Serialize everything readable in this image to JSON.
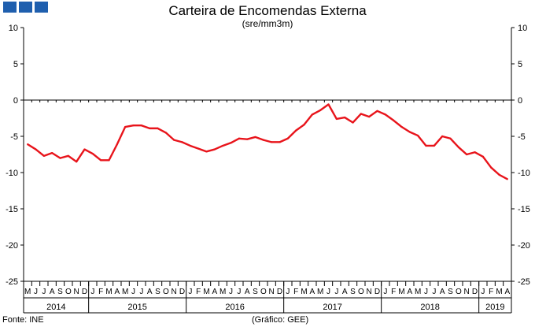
{
  "header": {
    "title": "Carteira de Encomendas Externa",
    "subtitle": "(sre/mm3m)"
  },
  "footer": {
    "source": "Fonte: INE",
    "credit": "(Gráfico: GEE)"
  },
  "brand": {
    "logo_color": "#1f5fae",
    "line_color": "#e8141b"
  },
  "chart_data": {
    "type": "line",
    "title": "Carteira de Encomendas Externa",
    "subtitle": "(sre/mm3m)",
    "ylim": [
      -25,
      10
    ],
    "yticks": [
      10,
      5,
      0,
      -5,
      -10,
      -15,
      -20,
      -25
    ],
    "y_axis_right": true,
    "grid": false,
    "month_labels": [
      "M",
      "J",
      "J",
      "A",
      "S",
      "O",
      "N",
      "D",
      "J",
      "F",
      "M",
      "A",
      "M",
      "J",
      "J",
      "A",
      "S",
      "O",
      "N",
      "D",
      "J",
      "F",
      "M",
      "A",
      "M",
      "J",
      "J",
      "A",
      "S",
      "O",
      "N",
      "D",
      "J",
      "F",
      "M",
      "A",
      "M",
      "J",
      "J",
      "A",
      "S",
      "O",
      "N",
      "D",
      "J",
      "F",
      "M",
      "A",
      "M",
      "J",
      "J",
      "A",
      "S",
      "O",
      "N",
      "D",
      "J",
      "F",
      "M",
      "A"
    ],
    "years": [
      {
        "label": "2014",
        "start": 0,
        "end": 8
      },
      {
        "label": "2015",
        "start": 8,
        "end": 20
      },
      {
        "label": "2016",
        "start": 20,
        "end": 32
      },
      {
        "label": "2017",
        "start": 32,
        "end": 44
      },
      {
        "label": "2018",
        "start": 44,
        "end": 56
      },
      {
        "label": "2019",
        "start": 56,
        "end": 60
      }
    ],
    "series": [
      {
        "color": "#e8141b",
        "values": [
          -6.1,
          -6.8,
          -7.7,
          -7.3,
          -8.0,
          -7.7,
          -8.5,
          -6.8,
          -7.4,
          -8.3,
          -8.3,
          -6.1,
          -3.7,
          -3.5,
          -3.5,
          -3.9,
          -3.9,
          -4.5,
          -5.5,
          -5.8,
          -6.3,
          -6.7,
          -7.1,
          -6.8,
          -6.3,
          -5.9,
          -5.3,
          -5.4,
          -5.1,
          -5.5,
          -5.8,
          -5.8,
          -5.3,
          -4.2,
          -3.4,
          -2.0,
          -1.4,
          -0.6,
          -2.6,
          -2.4,
          -3.1,
          -1.9,
          -2.3,
          -1.5,
          -2.0,
          -2.8,
          -3.7,
          -4.4,
          -4.9,
          -6.3,
          -6.3,
          -5.0,
          -5.3,
          -6.5,
          -7.5,
          -7.2,
          -7.8,
          -9.3,
          -10.3,
          -10.9
        ]
      }
    ]
  }
}
